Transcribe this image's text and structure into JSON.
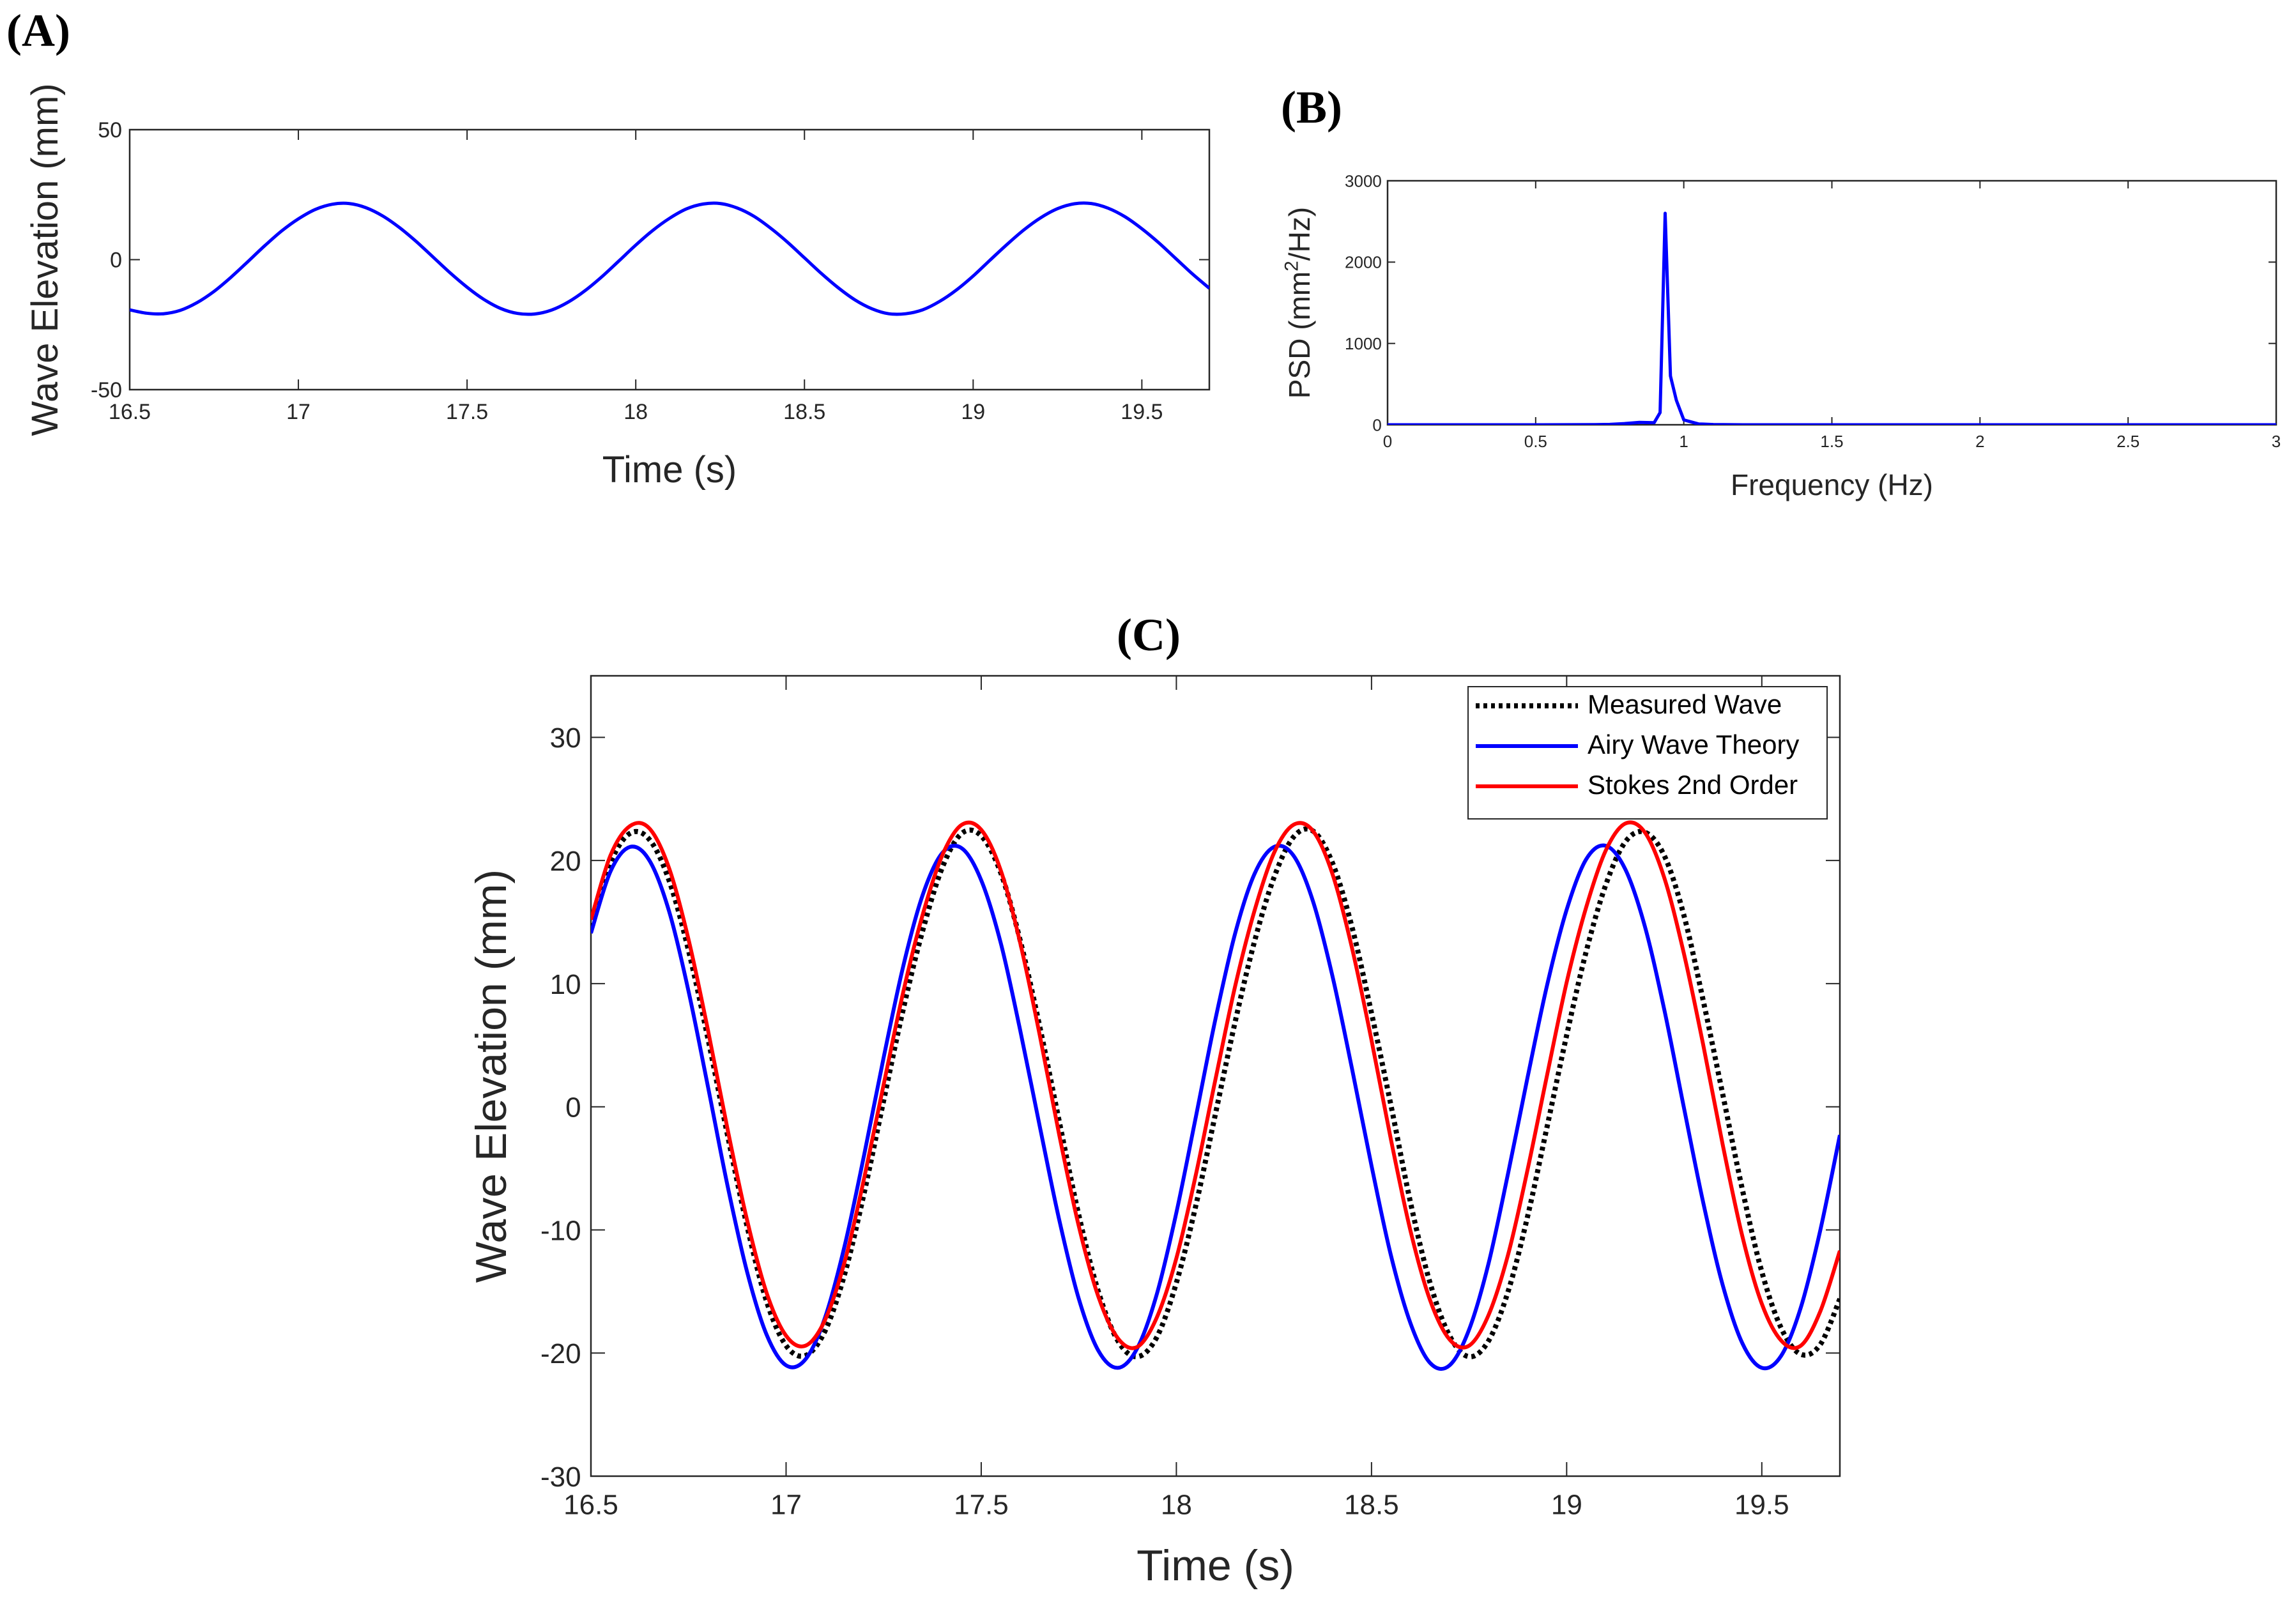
{
  "chart_data": [
    {
      "panel": "(A)",
      "type": "line",
      "xlabel": "Time (s)",
      "ylabel": "Wave Elevation (mm)",
      "xlim": [
        16.5,
        19.7
      ],
      "ylim": [
        -50,
        50
      ],
      "xticks": [
        16.5,
        17,
        17.5,
        18,
        18.5,
        19,
        19.5
      ],
      "yticks": [
        -50,
        0,
        50
      ],
      "grid": false,
      "series": [
        {
          "color": "#0000ff",
          "x": [
            16.5,
            16.55,
            16.6,
            16.65,
            16.7,
            16.75,
            16.8,
            16.85,
            16.9,
            16.95,
            17.0,
            17.05,
            17.1,
            17.15,
            17.2,
            17.25,
            17.3,
            17.35,
            17.4,
            17.45,
            17.5,
            17.55,
            17.6,
            17.65,
            17.7,
            17.75,
            17.8,
            17.85,
            17.9,
            17.95,
            18.0,
            18.05,
            18.1,
            18.15,
            18.2,
            18.25,
            18.3,
            18.35,
            18.4,
            18.45,
            18.5,
            18.55,
            18.6,
            18.65,
            18.7,
            18.75,
            18.8,
            18.85,
            18.9,
            18.95,
            19.0,
            19.05,
            19.1,
            19.15,
            19.2,
            19.25,
            19.3,
            19.35,
            19.4,
            19.45,
            19.5,
            19.55,
            19.6,
            19.65,
            19.7
          ],
          "y": [
            -19.3,
            -20.6,
            -20.8,
            -19.5,
            -16.5,
            -12.2,
            -6.8,
            -0.8,
            5.3,
            11.0,
            15.7,
            19.3,
            21.3,
            21.6,
            20.0,
            16.8,
            12.3,
            6.9,
            0.9,
            -5.1,
            -10.6,
            -15.3,
            -18.8,
            -20.7,
            -20.9,
            -19.4,
            -16.3,
            -11.9,
            -6.5,
            -0.5,
            5.6,
            11.2,
            15.9,
            19.5,
            21.4,
            21.6,
            19.9,
            16.7,
            12.1,
            6.7,
            0.7,
            -5.3,
            -10.8,
            -15.5,
            -18.9,
            -20.8,
            -20.8,
            -19.3,
            -16.1,
            -11.7,
            -6.3,
            -0.2,
            5.8,
            11.4,
            16.1,
            19.6,
            21.5,
            21.6,
            19.8,
            16.5,
            11.9,
            6.5,
            0.5,
            -5.5,
            -11.0
          ]
        }
      ]
    },
    {
      "panel": "(B)",
      "type": "line",
      "xlabel": "Frequency (Hz)",
      "ylabel": "PSD (mm²/Hz)",
      "ylabel_parts": {
        "pre": "PSD (mm",
        "sup": "2",
        "post": "/Hz)"
      },
      "xlim": [
        0,
        3
      ],
      "ylim": [
        0,
        3000
      ],
      "xticks": [
        0,
        0.5,
        1,
        1.5,
        2,
        2.5,
        3
      ],
      "yticks": [
        0,
        1000,
        2000,
        3000
      ],
      "grid": false,
      "series": [
        {
          "color": "#0000ff",
          "x": [
            0,
            0.5,
            0.7,
            0.75,
            0.8,
            0.85,
            0.9,
            0.92,
            0.937,
            0.955,
            0.975,
            1.0,
            1.05,
            1.1,
            1.2,
            1.5,
            2.0,
            2.5,
            3.0
          ],
          "y": [
            0,
            0,
            2,
            5,
            15,
            30,
            25,
            150,
            2600,
            600,
            300,
            60,
            10,
            3,
            0,
            0,
            0,
            0,
            0
          ]
        }
      ]
    },
    {
      "panel": "(C)",
      "type": "line",
      "xlabel": "Time (s)",
      "ylabel": "Wave Elevation (mm)",
      "xlim": [
        16.5,
        19.7
      ],
      "ylim": [
        -30,
        35
      ],
      "xticks": [
        16.5,
        17,
        17.5,
        18,
        18.5,
        19,
        19.5
      ],
      "yticks": [
        -30,
        -20,
        -10,
        0,
        10,
        20,
        30
      ],
      "grid": false,
      "legend_position": "top-right",
      "series": [
        {
          "name": "Measured Wave",
          "color": "#000000",
          "style": "dotted",
          "x": [
            16.5,
            16.55,
            16.6,
            16.65,
            16.7,
            16.75,
            16.8,
            16.85,
            16.9,
            16.95,
            17.0,
            17.05,
            17.1,
            17.15,
            17.2,
            17.25,
            17.3,
            17.35,
            17.4,
            17.45,
            17.5,
            17.55,
            17.6,
            17.65,
            17.7,
            17.75,
            17.8,
            17.85,
            17.9,
            17.95,
            18.0,
            18.05,
            18.1,
            18.15,
            18.2,
            18.25,
            18.3,
            18.35,
            18.4,
            18.45,
            18.5,
            18.55,
            18.6,
            18.65,
            18.7,
            18.75,
            18.8,
            18.85,
            18.9,
            18.95,
            19.0,
            19.05,
            19.1,
            19.15,
            19.2,
            19.25,
            19.3,
            19.35,
            19.4,
            19.45,
            19.5,
            19.55,
            19.6,
            19.65,
            19.7
          ],
          "y": [
            14.6,
            19.8,
            22.2,
            21.7,
            18.4,
            12.7,
            5.5,
            -2.3,
            -9.7,
            -15.8,
            -19.4,
            -20.2,
            -18.2,
            -13.6,
            -7.0,
            0.5,
            7.9,
            14.3,
            19.4,
            22.2,
            22.0,
            19.0,
            13.5,
            6.5,
            -1.2,
            -8.8,
            -15.0,
            -19.0,
            -20.3,
            -18.7,
            -14.3,
            -8.0,
            -0.6,
            6.8,
            13.4,
            18.6,
            21.9,
            22.4,
            19.8,
            14.6,
            7.6,
            0.1,
            -7.8,
            -14.3,
            -18.6,
            -20.3,
            -19.0,
            -15.0,
            -8.9,
            -1.6,
            5.8,
            12.6,
            18.0,
            21.5,
            22.3,
            20.4,
            15.6,
            8.6,
            1.0,
            -6.7,
            -13.4,
            -18.0,
            -20.1,
            -19.3,
            -15.6
          ]
        },
        {
          "name": "Airy Wave Theory",
          "color": "#0000ff",
          "style": "solid",
          "x": [
            16.5,
            16.55,
            16.6,
            16.65,
            16.7,
            16.75,
            16.8,
            16.85,
            16.9,
            16.95,
            17.0,
            17.05,
            17.1,
            17.15,
            17.2,
            17.25,
            17.3,
            17.35,
            17.4,
            17.45,
            17.5,
            17.55,
            17.6,
            17.65,
            17.7,
            17.75,
            17.8,
            17.85,
            17.9,
            17.95,
            18.0,
            18.05,
            18.1,
            18.15,
            18.2,
            18.25,
            18.3,
            18.35,
            18.4,
            18.45,
            18.5,
            18.55,
            18.6,
            18.65,
            18.7,
            18.75,
            18.8,
            18.85,
            18.9,
            18.95,
            19.0,
            19.05,
            19.1,
            19.15,
            19.2,
            19.25,
            19.3,
            19.35,
            19.4,
            19.45,
            19.5,
            19.55,
            19.6,
            19.65,
            19.7
          ],
          "y": [
            14.1,
            19.1,
            21.1,
            20.0,
            15.9,
            9.4,
            1.6,
            -6.4,
            -13.4,
            -18.5,
            -21.0,
            -20.5,
            -17.1,
            -11.3,
            -3.9,
            4.0,
            11.4,
            17.2,
            20.6,
            21.0,
            18.4,
            13.3,
            6.2,
            -1.6,
            -9.2,
            -15.6,
            -19.8,
            -21.2,
            -19.6,
            -15.2,
            -8.6,
            -0.8,
            7.1,
            14.0,
            18.9,
            21.1,
            20.4,
            16.7,
            10.6,
            3.1,
            -4.8,
            -12.1,
            -17.6,
            -20.8,
            -21.0,
            -18.1,
            -12.7,
            -5.4,
            2.4,
            9.9,
            16.0,
            20.1,
            21.2,
            19.3,
            14.7,
            7.9,
            0.0,
            -7.8,
            -14.5,
            -19.2,
            -21.2,
            -20.2,
            -16.3,
            -10.0,
            -2.3
          ]
        },
        {
          "name": "Stokes 2nd Order",
          "color": "#ff0000",
          "style": "solid",
          "x": [
            16.5,
            16.55,
            16.6,
            16.65,
            16.7,
            16.75,
            16.8,
            16.85,
            16.9,
            16.95,
            17.0,
            17.05,
            17.1,
            17.15,
            17.2,
            17.25,
            17.3,
            17.35,
            17.4,
            17.45,
            17.5,
            17.55,
            17.6,
            17.65,
            17.7,
            17.75,
            17.8,
            17.85,
            17.9,
            17.95,
            18.0,
            18.05,
            18.1,
            18.15,
            18.2,
            18.25,
            18.3,
            18.35,
            18.4,
            18.45,
            18.5,
            18.55,
            18.6,
            18.65,
            18.7,
            18.75,
            18.8,
            18.85,
            18.9,
            18.95,
            19.0,
            19.05,
            19.1,
            19.15,
            19.2,
            19.25,
            19.3,
            19.35,
            19.4,
            19.45,
            19.5,
            19.55,
            19.6,
            19.65,
            19.7
          ],
          "y": [
            15.2,
            20.4,
            22.8,
            22.6,
            19.4,
            13.6,
            6.2,
            -1.8,
            -9.2,
            -15.1,
            -18.6,
            -19.4,
            -17.3,
            -12.6,
            -5.8,
            1.8,
            9.3,
            15.6,
            20.4,
            22.9,
            22.5,
            19.2,
            13.3,
            5.8,
            -2.3,
            -9.7,
            -15.4,
            -18.8,
            -19.5,
            -17.1,
            -12.3,
            -5.5,
            2.2,
            9.7,
            15.9,
            20.6,
            22.9,
            22.4,
            18.9,
            12.9,
            5.4,
            -2.7,
            -10.1,
            -15.7,
            -18.9,
            -19.4,
            -16.9,
            -12.0,
            -5.1,
            2.6,
            10.1,
            16.2,
            20.8,
            23.0,
            22.3,
            18.6,
            12.5,
            5.0,
            -3.1,
            -10.5,
            -16.0,
            -19.0,
            -19.4,
            -16.6,
            -11.7
          ]
        }
      ]
    }
  ]
}
